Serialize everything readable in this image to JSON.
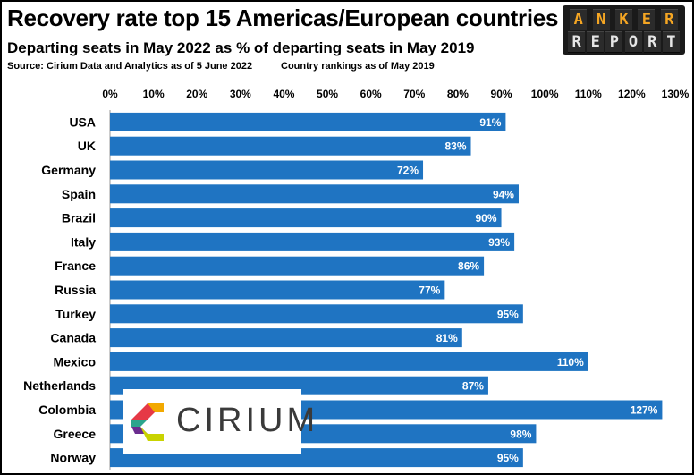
{
  "header": {
    "title": "Recovery rate top 15 Americas/European countries",
    "subtitle": "Departing seats in May 2022 as % of departing seats in May 2019",
    "source": "Source: Cirium Data and Analytics as of 5 June 2022",
    "ranking_note": "Country rankings as of May 2019"
  },
  "logo": {
    "anker": "ANKER",
    "report": "REPORT",
    "anker_color": "#f5a623",
    "report_color": "#e6e6e6"
  },
  "cirium_logo": {
    "text": "CIRIUM",
    "colors": [
      "#e63946",
      "#f2a900",
      "#2ca58d",
      "#6b2d8f",
      "#c9d300"
    ]
  },
  "chart_data": {
    "type": "bar",
    "orientation": "horizontal",
    "categories": [
      "USA",
      "UK",
      "Germany",
      "Spain",
      "Brazil",
      "Italy",
      "France",
      "Russia",
      "Turkey",
      "Canada",
      "Mexico",
      "Netherlands",
      "Colombia",
      "Greece",
      "Norway"
    ],
    "values": [
      91,
      83,
      72,
      94,
      90,
      93,
      86,
      77,
      95,
      81,
      110,
      87,
      127,
      98,
      95
    ],
    "value_labels": [
      "91%",
      "83%",
      "72%",
      "94%",
      "90%",
      "93%",
      "86%",
      "77%",
      "95%",
      "81%",
      "110%",
      "87%",
      "127%",
      "98%",
      "95%"
    ],
    "x_ticks": [
      "0%",
      "10%",
      "20%",
      "30%",
      "40%",
      "50%",
      "60%",
      "70%",
      "80%",
      "90%",
      "100%",
      "110%",
      "120%",
      "130%"
    ],
    "xlim": [
      0,
      130
    ],
    "x_axis_position": "top",
    "grid": false,
    "bar_color": "#1f74c2"
  }
}
